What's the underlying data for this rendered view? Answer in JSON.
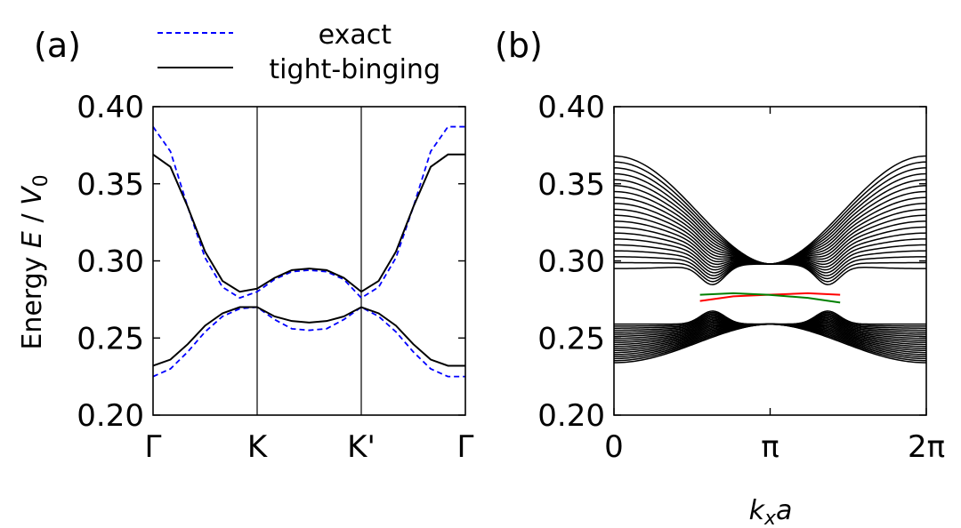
{
  "chart_data": [
    {
      "type": "line",
      "panel_label": "(a)",
      "ylabel_prefix": "Energy ",
      "ylabel_var": "E",
      "ylabel_sep": " / ",
      "ylabel_unit": "V",
      "ylabel_unit_sub": "0",
      "ylim": [
        0.2,
        0.4
      ],
      "yticks": [
        "0.20",
        "0.25",
        "0.30",
        "0.35",
        "0.40"
      ],
      "xticks": [
        "Γ",
        "K",
        "K'",
        "Γ"
      ],
      "legend": [
        "exact",
        "tight-binging"
      ],
      "colors": {
        "exact": "#0000ff",
        "tight": "#000000"
      },
      "x": [
        0,
        0.167,
        0.333,
        0.5,
        0.667,
        0.833,
        1.0,
        1.167,
        1.333,
        1.5,
        1.667,
        1.833,
        2.0,
        2.167,
        2.333,
        2.5,
        2.667,
        2.833,
        3.0
      ],
      "series": [
        {
          "name": "exact",
          "values": [
            0.387,
            0.371,
            0.335,
            0.302,
            0.283,
            0.276,
            0.28,
            0.288,
            0.293,
            0.294,
            0.293,
            0.288,
            0.276,
            0.283,
            0.302,
            0.335,
            0.371,
            0.387,
            0.387
          ]
        },
        {
          "name": "exact",
          "values": [
            0.225,
            0.23,
            0.241,
            0.254,
            0.264,
            0.269,
            0.27,
            0.262,
            0.256,
            0.255,
            0.256,
            0.262,
            0.27,
            0.264,
            0.254,
            0.241,
            0.23,
            0.225,
            0.225
          ]
        },
        {
          "name": "tight-binging",
          "values": [
            0.369,
            0.361,
            0.335,
            0.306,
            0.287,
            0.28,
            0.282,
            0.289,
            0.294,
            0.295,
            0.294,
            0.289,
            0.28,
            0.287,
            0.306,
            0.335,
            0.361,
            0.369,
            0.369
          ]
        },
        {
          "name": "tight-binging",
          "values": [
            0.232,
            0.236,
            0.246,
            0.258,
            0.266,
            0.27,
            0.27,
            0.264,
            0.261,
            0.26,
            0.261,
            0.264,
            0.27,
            0.266,
            0.258,
            0.246,
            0.236,
            0.232,
            0.232
          ]
        }
      ]
    },
    {
      "type": "line",
      "panel_label": "(b)",
      "ylim": [
        0.2,
        0.4
      ],
      "yticks": [
        "0.20",
        "0.25",
        "0.30",
        "0.35",
        "0.40"
      ],
      "xlim": [
        0,
        6.2832
      ],
      "xticks": [
        "0",
        "π",
        "2π"
      ],
      "xlabel_var": "k",
      "xlabel_sub": "x",
      "xlabel_suffix": "a",
      "n_bulk_bands": 20,
      "upper_band_edge": {
        "top_at_0": 0.368,
        "bottom_at_0": 0.295,
        "at_pi": 0.298,
        "min_near_edge_state": 0.279
      },
      "lower_band_edge": {
        "top_at_0": 0.259,
        "bottom_at_0": 0.234,
        "at_pi": 0.259,
        "max_near_edge_state": 0.272
      },
      "edge_states": [
        {
          "color": "#ff0000",
          "x": [
            1.73,
            2.4,
            3.1,
            3.9,
            4.55
          ],
          "values": [
            0.274,
            0.277,
            0.278,
            0.279,
            0.278
          ]
        },
        {
          "color": "#008000",
          "x": [
            1.73,
            2.4,
            3.1,
            3.9,
            4.55
          ],
          "values": [
            0.278,
            0.279,
            0.278,
            0.276,
            0.273
          ]
        }
      ]
    }
  ]
}
